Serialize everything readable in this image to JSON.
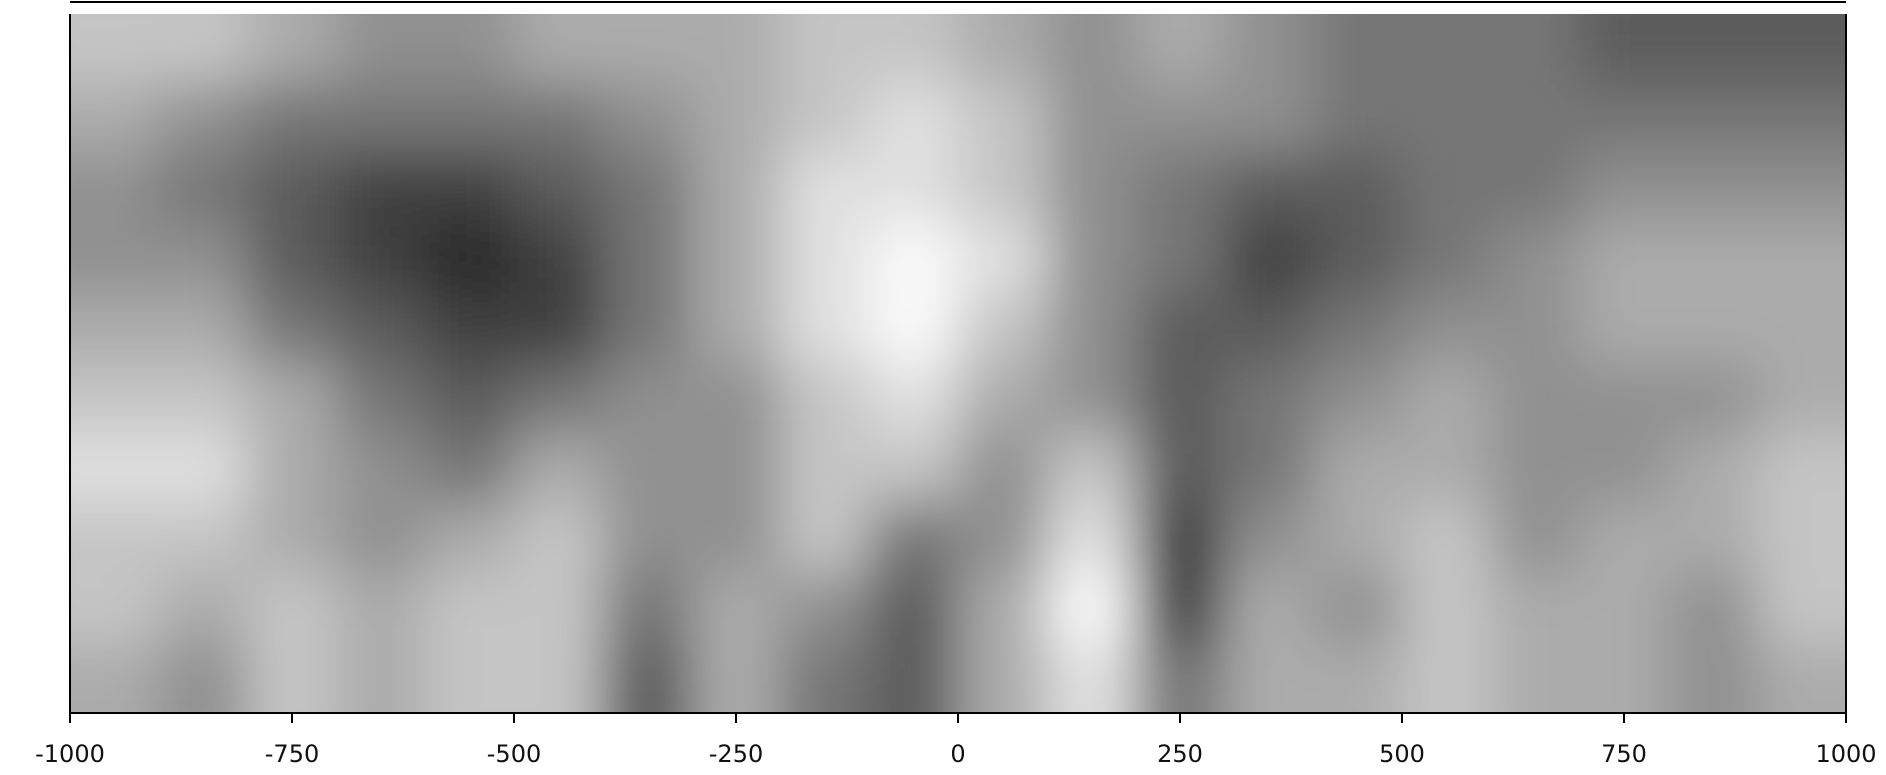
{
  "chart_data": {
    "type": "heatmap",
    "xlim": [
      -1000,
      1000
    ],
    "xticks": [
      -1000,
      -750,
      -500,
      -250,
      0,
      250,
      500,
      750,
      1000
    ],
    "x": [
      -950,
      -850,
      -750,
      -650,
      -550,
      -450,
      -350,
      -250,
      -150,
      -50,
      50,
      150,
      250,
      350,
      450,
      550,
      650,
      750,
      850,
      950
    ],
    "zlim": [
      0,
      8
    ],
    "colormap": [
      "#262626",
      "#fafafa"
    ],
    "z": [
      [
        6,
        6,
        5,
        4,
        4,
        5,
        5,
        5,
        6,
        6,
        5,
        4,
        5,
        4,
        3,
        3,
        3,
        2,
        2,
        2
      ],
      [
        5,
        4,
        3,
        3,
        3,
        3,
        4,
        5,
        6,
        7,
        6,
        4,
        4,
        4,
        3,
        3,
        3,
        3,
        3,
        3
      ],
      [
        4,
        3,
        2,
        1,
        1,
        2,
        3,
        5,
        7,
        7,
        6,
        4,
        3,
        2,
        2,
        3,
        3,
        4,
        4,
        4
      ],
      [
        4,
        4,
        2,
        1,
        0,
        1,
        3,
        5,
        7,
        8,
        7,
        4,
        3,
        1,
        2,
        3,
        4,
        5,
        5,
        5
      ],
      [
        5,
        5,
        3,
        2,
        1,
        1,
        3,
        5,
        7,
        8,
        6,
        4,
        2,
        2,
        3,
        4,
        4,
        5,
        5,
        5
      ],
      [
        6,
        6,
        5,
        3,
        2,
        3,
        4,
        4,
        6,
        7,
        5,
        4,
        2,
        3,
        4,
        5,
        4,
        4,
        4,
        5
      ],
      [
        7,
        7,
        5,
        4,
        3,
        5,
        4,
        4,
        6,
        6,
        4,
        6,
        2,
        3,
        5,
        5,
        4,
        4,
        5,
        6
      ],
      [
        6,
        6,
        5,
        4,
        5,
        6,
        4,
        4,
        6,
        3,
        4,
        7,
        1,
        4,
        5,
        6,
        4,
        5,
        5,
        6
      ],
      [
        6,
        5,
        6,
        5,
        6,
        6,
        3,
        5,
        4,
        2,
        5,
        8,
        1,
        5,
        4,
        6,
        5,
        5,
        4,
        6
      ],
      [
        5,
        4,
        6,
        5,
        6,
        6,
        2,
        5,
        3,
        2,
        5,
        7,
        3,
        5,
        5,
        6,
        5,
        5,
        4,
        5
      ]
    ]
  }
}
